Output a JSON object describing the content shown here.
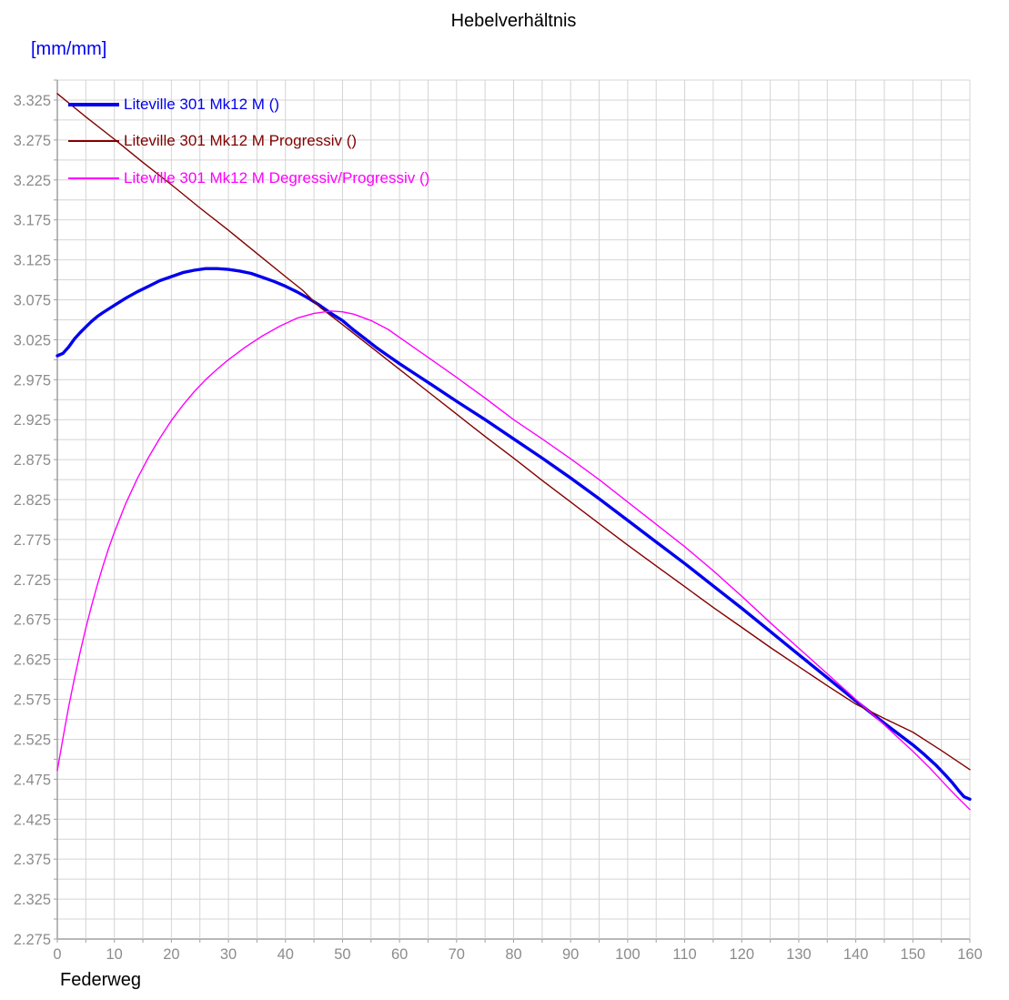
{
  "chart_data": {
    "type": "line",
    "title": "Hebelverhältnis",
    "y_unit_label": "[mm/mm]",
    "xlabel": "Federweg",
    "grid": true,
    "legend_position": "top-left-inside",
    "x_axis": {
      "min": 0,
      "max": 160,
      "grid_step": 5,
      "label_step": 10
    },
    "y_axis": {
      "min": 2.275,
      "max": 3.35,
      "grid_step": 0.025,
      "label_step": 0.05,
      "label_top": 3.325
    },
    "x_tick_labels": [
      "0",
      "10",
      "20",
      "30",
      "40",
      "50",
      "60",
      "70",
      "80",
      "90",
      "100",
      "110",
      "120",
      "130",
      "140",
      "150",
      "160"
    ],
    "y_tick_labels": [
      "3.325",
      "3.275",
      "3.225",
      "3.175",
      "3.125",
      "3.075",
      "3.025",
      "2.975",
      "2.925",
      "2.875",
      "2.825",
      "2.775",
      "2.725",
      "2.675",
      "2.625",
      "2.575",
      "2.525",
      "2.475",
      "2.425",
      "2.375",
      "2.325",
      "2.275"
    ],
    "colors": {
      "grid": "#d4d4d4",
      "axis": "#a0a0a0",
      "tick_text": "#8c8c8c",
      "title_text": "#000000",
      "unit_text": "#0000ee"
    },
    "series": [
      {
        "name": "Liteville 301 Mk12 M ()",
        "color": "#0000ee",
        "width": 3.4,
        "points": [
          [
            0,
            3.005
          ],
          [
            1,
            3.008
          ],
          [
            2,
            3.016
          ],
          [
            3,
            3.026
          ],
          [
            4,
            3.034
          ],
          [
            5,
            3.041
          ],
          [
            6,
            3.048
          ],
          [
            7,
            3.054
          ],
          [
            8,
            3.059
          ],
          [
            10,
            3.068
          ],
          [
            12,
            3.077
          ],
          [
            14,
            3.085
          ],
          [
            16,
            3.092
          ],
          [
            18,
            3.099
          ],
          [
            20,
            3.104
          ],
          [
            22,
            3.109
          ],
          [
            24,
            3.112
          ],
          [
            26,
            3.114
          ],
          [
            28,
            3.114
          ],
          [
            30,
            3.113
          ],
          [
            32,
            3.111
          ],
          [
            34,
            3.108
          ],
          [
            36,
            3.103
          ],
          [
            38,
            3.098
          ],
          [
            40,
            3.092
          ],
          [
            42,
            3.085
          ],
          [
            44,
            3.077
          ],
          [
            46,
            3.068
          ],
          [
            48,
            3.058
          ],
          [
            50,
            3.049
          ],
          [
            52,
            3.037
          ],
          [
            54,
            3.026
          ],
          [
            56,
            3.015
          ],
          [
            58,
            3.005
          ],
          [
            60,
            2.995
          ],
          [
            63,
            2.981
          ],
          [
            66,
            2.967
          ],
          [
            70,
            2.948
          ],
          [
            75,
            2.925
          ],
          [
            80,
            2.901
          ],
          [
            85,
            2.877
          ],
          [
            90,
            2.852
          ],
          [
            95,
            2.826
          ],
          [
            100,
            2.799
          ],
          [
            105,
            2.772
          ],
          [
            110,
            2.745
          ],
          [
            115,
            2.717
          ],
          [
            120,
            2.689
          ],
          [
            125,
            2.66
          ],
          [
            130,
            2.631
          ],
          [
            135,
            2.602
          ],
          [
            140,
            2.573
          ],
          [
            145,
            2.545
          ],
          [
            150,
            2.518
          ],
          [
            152,
            2.506
          ],
          [
            154,
            2.493
          ],
          [
            156,
            2.478
          ],
          [
            157,
            2.47
          ],
          [
            158,
            2.461
          ],
          [
            159,
            2.453
          ],
          [
            160,
            2.45
          ]
        ]
      },
      {
        "name": "Liteville 301 Mk12 M Progressiv ()",
        "color": "#820000",
        "width": 1.4,
        "points": [
          [
            0,
            3.333
          ],
          [
            5,
            3.304
          ],
          [
            10,
            3.276
          ],
          [
            15,
            3.247
          ],
          [
            20,
            3.219
          ],
          [
            25,
            3.19
          ],
          [
            30,
            3.162
          ],
          [
            35,
            3.133
          ],
          [
            40,
            3.104
          ],
          [
            43,
            3.087
          ],
          [
            46,
            3.066
          ],
          [
            50,
            3.044
          ],
          [
            55,
            3.016
          ],
          [
            60,
            2.988
          ],
          [
            65,
            2.96
          ],
          [
            70,
            2.932
          ],
          [
            75,
            2.904
          ],
          [
            80,
            2.877
          ],
          [
            85,
            2.849
          ],
          [
            90,
            2.822
          ],
          [
            95,
            2.795
          ],
          [
            100,
            2.768
          ],
          [
            105,
            2.742
          ],
          [
            110,
            2.716
          ],
          [
            115,
            2.69
          ],
          [
            120,
            2.665
          ],
          [
            125,
            2.64
          ],
          [
            130,
            2.616
          ],
          [
            135,
            2.592
          ],
          [
            140,
            2.569
          ],
          [
            145,
            2.551
          ],
          [
            150,
            2.534
          ],
          [
            155,
            2.511
          ],
          [
            160,
            2.487
          ]
        ]
      },
      {
        "name": "Liteville 301 Mk12 M Degressiv/Progressiv ()",
        "color": "#ff00ff",
        "width": 1.4,
        "points": [
          [
            0,
            2.486
          ],
          [
            1,
            2.527
          ],
          [
            2,
            2.566
          ],
          [
            3,
            2.601
          ],
          [
            4,
            2.634
          ],
          [
            5,
            2.664
          ],
          [
            6,
            2.692
          ],
          [
            7,
            2.718
          ],
          [
            8,
            2.742
          ],
          [
            9,
            2.764
          ],
          [
            10,
            2.784
          ],
          [
            12,
            2.82
          ],
          [
            14,
            2.851
          ],
          [
            16,
            2.878
          ],
          [
            18,
            2.902
          ],
          [
            20,
            2.924
          ],
          [
            22,
            2.943
          ],
          [
            24,
            2.96
          ],
          [
            26,
            2.975
          ],
          [
            28,
            2.988
          ],
          [
            30,
            3.0
          ],
          [
            33,
            3.016
          ],
          [
            36,
            3.03
          ],
          [
            39,
            3.042
          ],
          [
            42,
            3.052
          ],
          [
            45,
            3.058
          ],
          [
            48,
            3.061
          ],
          [
            50,
            3.06
          ],
          [
            52,
            3.057
          ],
          [
            55,
            3.049
          ],
          [
            58,
            3.038
          ],
          [
            60,
            3.028
          ],
          [
            63,
            3.013
          ],
          [
            66,
            2.998
          ],
          [
            70,
            2.978
          ],
          [
            75,
            2.952
          ],
          [
            80,
            2.925
          ],
          [
            85,
            2.901
          ],
          [
            90,
            2.876
          ],
          [
            95,
            2.85
          ],
          [
            100,
            2.822
          ],
          [
            105,
            2.794
          ],
          [
            110,
            2.766
          ],
          [
            115,
            2.736
          ],
          [
            120,
            2.704
          ],
          [
            125,
            2.671
          ],
          [
            130,
            2.639
          ],
          [
            135,
            2.607
          ],
          [
            140,
            2.575
          ],
          [
            145,
            2.543
          ],
          [
            150,
            2.51
          ],
          [
            153,
            2.489
          ],
          [
            156,
            2.466
          ],
          [
            158,
            2.451
          ],
          [
            160,
            2.437
          ]
        ]
      }
    ],
    "legend_rows_y": [
      103,
      143,
      184
    ]
  },
  "layout_note": ""
}
